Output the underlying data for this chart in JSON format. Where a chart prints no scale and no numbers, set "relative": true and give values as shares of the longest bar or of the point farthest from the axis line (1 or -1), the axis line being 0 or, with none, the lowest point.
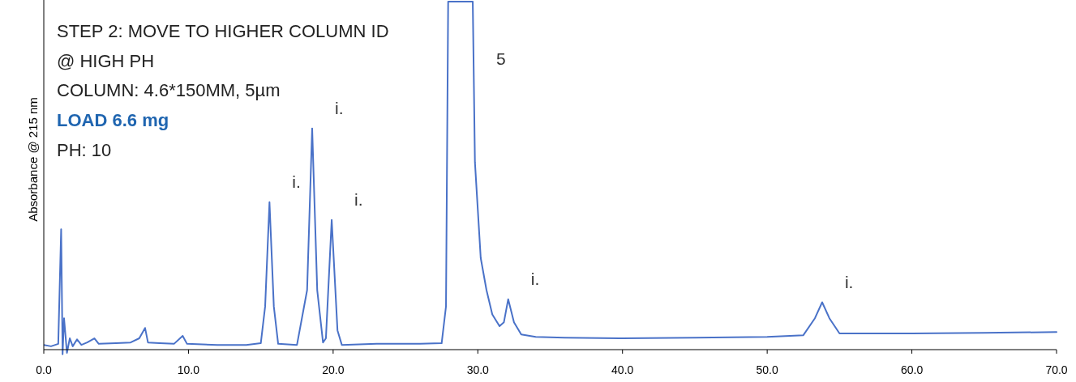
{
  "chart_data": {
    "type": "line",
    "relative": true,
    "title": "STEP 2: MOVE TO HIGHER COLUMN ID",
    "subtitle": "@ HIGH PH",
    "ylabel": "Absorbance @ 215 nm",
    "xlim": [
      0,
      70
    ],
    "xticks": [
      {
        "value": 0,
        "label": "0.0"
      },
      {
        "value": 10,
        "label": "10.0"
      },
      {
        "value": 20,
        "label": "20.0"
      },
      {
        "value": 30,
        "label": "30.0"
      },
      {
        "value": 40,
        "label": "40.0"
      },
      {
        "value": 50,
        "label": "50.0"
      },
      {
        "value": 60,
        "label": "60.0"
      },
      {
        "value": 70,
        "label": "70.0"
      }
    ],
    "tick_labels": "x",
    "grid": false,
    "marker": "none",
    "line_style": "solid",
    "series": [
      {
        "color": "#4a72c8",
        "x": [
          0,
          0.5,
          1.0,
          1.2,
          1.3,
          1.4,
          1.6,
          1.8,
          2.0,
          2.3,
          2.6,
          3.0,
          3.5,
          3.8,
          5.0,
          6.0,
          6.6,
          7.0,
          7.2,
          8.0,
          9.0,
          9.6,
          9.9,
          12,
          14,
          15.0,
          15.3,
          15.6,
          15.9,
          16.2,
          17.5,
          18.2,
          18.55,
          18.9,
          19.3,
          19.5,
          19.9,
          20.3,
          20.6,
          23,
          26,
          27.5,
          27.8,
          27.95,
          29.65,
          29.8,
          30.2,
          30.6,
          31.0,
          31.5,
          31.8,
          32.1,
          32.5,
          33.0,
          34,
          36,
          40,
          45,
          50,
          52.5,
          53.3,
          53.8,
          54.3,
          55,
          60,
          65,
          70
        ],
        "values": [
          0.009,
          0.005,
          0.012,
          0.343,
          -0.018,
          0.086,
          -0.014,
          0.028,
          0.005,
          0.025,
          0.009,
          0.016,
          0.028,
          0.012,
          0.014,
          0.016,
          0.028,
          0.058,
          0.016,
          0.014,
          0.012,
          0.035,
          0.012,
          0.009,
          0.009,
          0.014,
          0.12,
          0.421,
          0.12,
          0.012,
          0.009,
          0.167,
          0.634,
          0.167,
          0.016,
          0.028,
          0.37,
          0.051,
          0.009,
          0.012,
          0.012,
          0.014,
          0.12,
          1,
          1,
          0.537,
          0.26,
          0.167,
          0.097,
          0.063,
          0.074,
          0.141,
          0.074,
          0.039,
          0.032,
          0.03,
          0.028,
          0.03,
          0.032,
          0.037,
          0.086,
          0.132,
          0.086,
          0.042,
          0.042,
          0.044,
          0.046
        ]
      }
    ],
    "annotations": [
      "COLUMN: 4.6*150MM, 5µm",
      "LOAD 6.6 mg",
      "PH: 10",
      {
        "text": "5",
        "x": 29.71,
        "y": 0.8
      },
      {
        "text": "i.",
        "x": 15.6,
        "y": 0.421
      },
      {
        "text": "i.",
        "x": 18.55,
        "y": 0.634
      },
      {
        "text": "i.",
        "x": 19.9,
        "y": 0.37
      },
      {
        "text": "i.",
        "x": 32.1,
        "y": 0.141
      },
      {
        "text": "i.",
        "x": 53.8,
        "y": 0.132
      }
    ]
  }
}
